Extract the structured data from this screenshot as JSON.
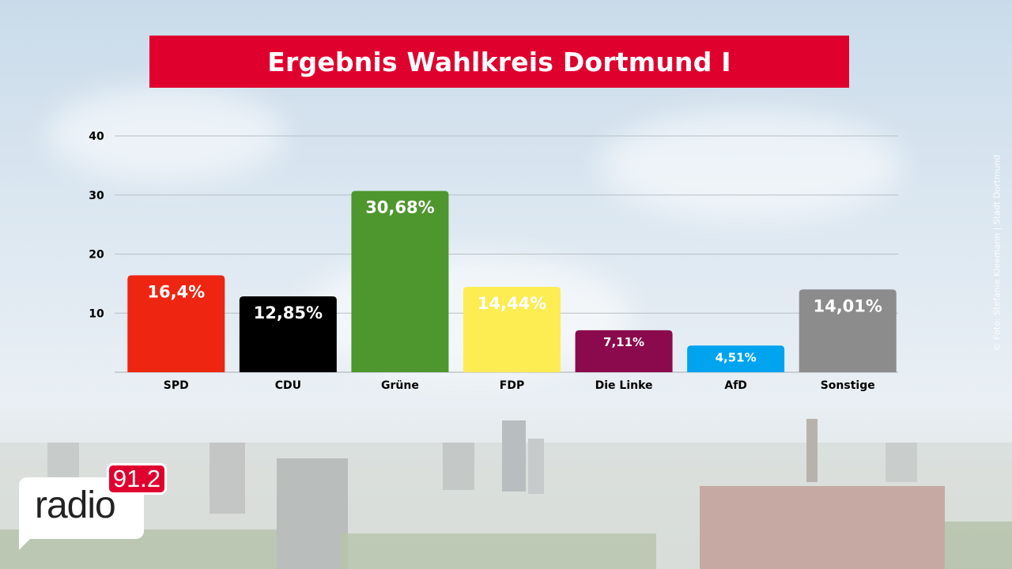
{
  "title": "Ergebnis Wahlkreis Dortmund I",
  "photo_credit": "© Foto: Stefanie Kleemann | Stadt Dortmund",
  "logo": {
    "word": "radio",
    "frequency": "91.2"
  },
  "chart_data": {
    "type": "bar",
    "title": "Ergebnis Wahlkreis Dortmund I",
    "categories": [
      "SPD",
      "CDU",
      "Grüne",
      "FDP",
      "Die Linke",
      "AfD",
      "Sonstige"
    ],
    "values": [
      16.4,
      12.85,
      30.68,
      14.44,
      7.11,
      4.51,
      14.01
    ],
    "data_labels": [
      "16,4%",
      "12,85%",
      "30,68%",
      "14,44%",
      "7,11%",
      "4,51%",
      "14,01%"
    ],
    "colors": [
      "#ee2511",
      "#000000",
      "#4e962e",
      "#fdec52",
      "#8b0a4d",
      "#00a3ee",
      "#8c8c8c"
    ],
    "yticks": [
      10,
      20,
      30,
      40
    ],
    "ylim": [
      0,
      40
    ],
    "xlabel": "",
    "ylabel": "",
    "grid": true,
    "legend": "none"
  }
}
